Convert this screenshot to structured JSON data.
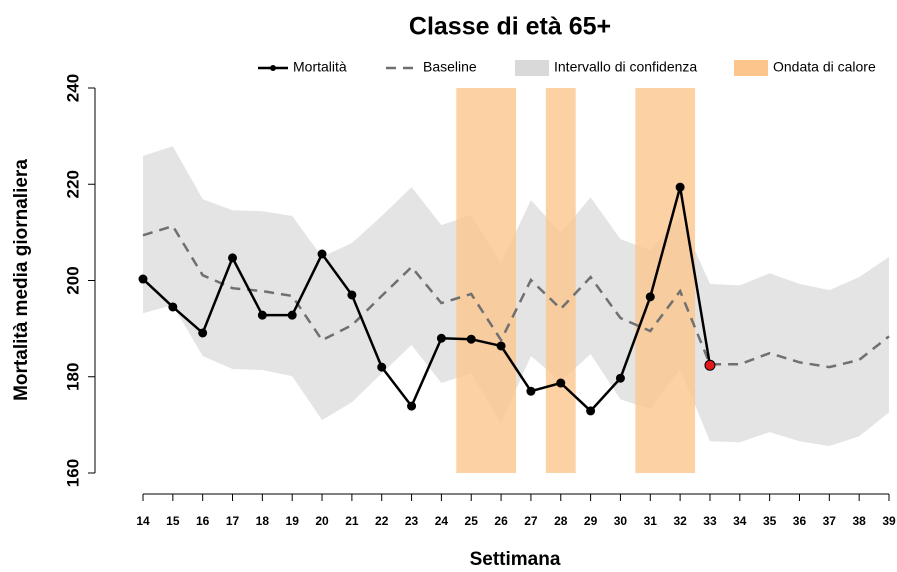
{
  "chart_data": {
    "type": "line",
    "title": "Classe di età 65+",
    "x_label": "Settimana",
    "y_label": "Mortalità media giornaliera",
    "x": [
      14,
      15,
      16,
      17,
      18,
      19,
      20,
      21,
      22,
      23,
      24,
      25,
      26,
      27,
      28,
      29,
      30,
      31,
      32,
      33,
      34,
      35,
      36,
      37,
      38,
      39
    ],
    "xlim": [
      14,
      39
    ],
    "xticks": [
      14,
      15,
      16,
      17,
      18,
      19,
      20,
      21,
      22,
      23,
      24,
      25,
      26,
      27,
      28,
      29,
      30,
      31,
      32,
      33,
      34,
      35,
      36,
      37,
      38,
      39
    ],
    "ylim": [
      160,
      240
    ],
    "yticks": [
      160,
      180,
      200,
      220,
      240
    ],
    "series": [
      {
        "name": "Mortalità",
        "color": "#000000",
        "dash": false,
        "markers": true,
        "last_point_color": "#e31a1c",
        "values": [
          200.3,
          194.5,
          189.1,
          204.7,
          192.8,
          192.8,
          205.5,
          197,
          182,
          173.9,
          188,
          187.8,
          186.4,
          177,
          178.7,
          172.9,
          179.7,
          196.6,
          219.4,
          182.4,
          null,
          null,
          null,
          null,
          null,
          null
        ]
      },
      {
        "name": "Baseline",
        "color": "#707070",
        "dash": true,
        "markers": false,
        "values": [
          209.4,
          211.3,
          201.1,
          198.4,
          197.8,
          196.8,
          187.6,
          190.7,
          196.8,
          202.8,
          195.3,
          197.2,
          187.6,
          200.1,
          194.1,
          200.7,
          192.2,
          189.5,
          197.8,
          182.6,
          182.6,
          184.9,
          183,
          182,
          183.5,
          188.4
        ]
      }
    ],
    "confidence": {
      "name": "Intervallo di confidenza",
      "color": "#d9d9d9",
      "upper": [
        225.9,
        227.9,
        216.9,
        214.6,
        214.4,
        213.4,
        204.9,
        207.8,
        213.4,
        219.4,
        211.5,
        213.6,
        203.6,
        216.7,
        209.9,
        217.3,
        208.6,
        206.3,
        213.2,
        199.3,
        199,
        201.5,
        199.3,
        198,
        200.7,
        204.9
      ],
      "lower": [
        193.2,
        194.9,
        184.3,
        181.6,
        181.4,
        180.1,
        171,
        174.7,
        180.7,
        186.6,
        178.7,
        180.7,
        170.4,
        184.3,
        179.1,
        184.7,
        175.3,
        173.3,
        181.6,
        166.6,
        166.4,
        168.5,
        166.6,
        165.6,
        167.6,
        172.6
      ]
    },
    "heatwave": {
      "name": "Ondata di calore",
      "color": "#fbc58c",
      "ranges": [
        [
          24.5,
          26.5
        ],
        [
          27.5,
          28.5
        ],
        [
          30.5,
          32.5
        ]
      ]
    }
  }
}
